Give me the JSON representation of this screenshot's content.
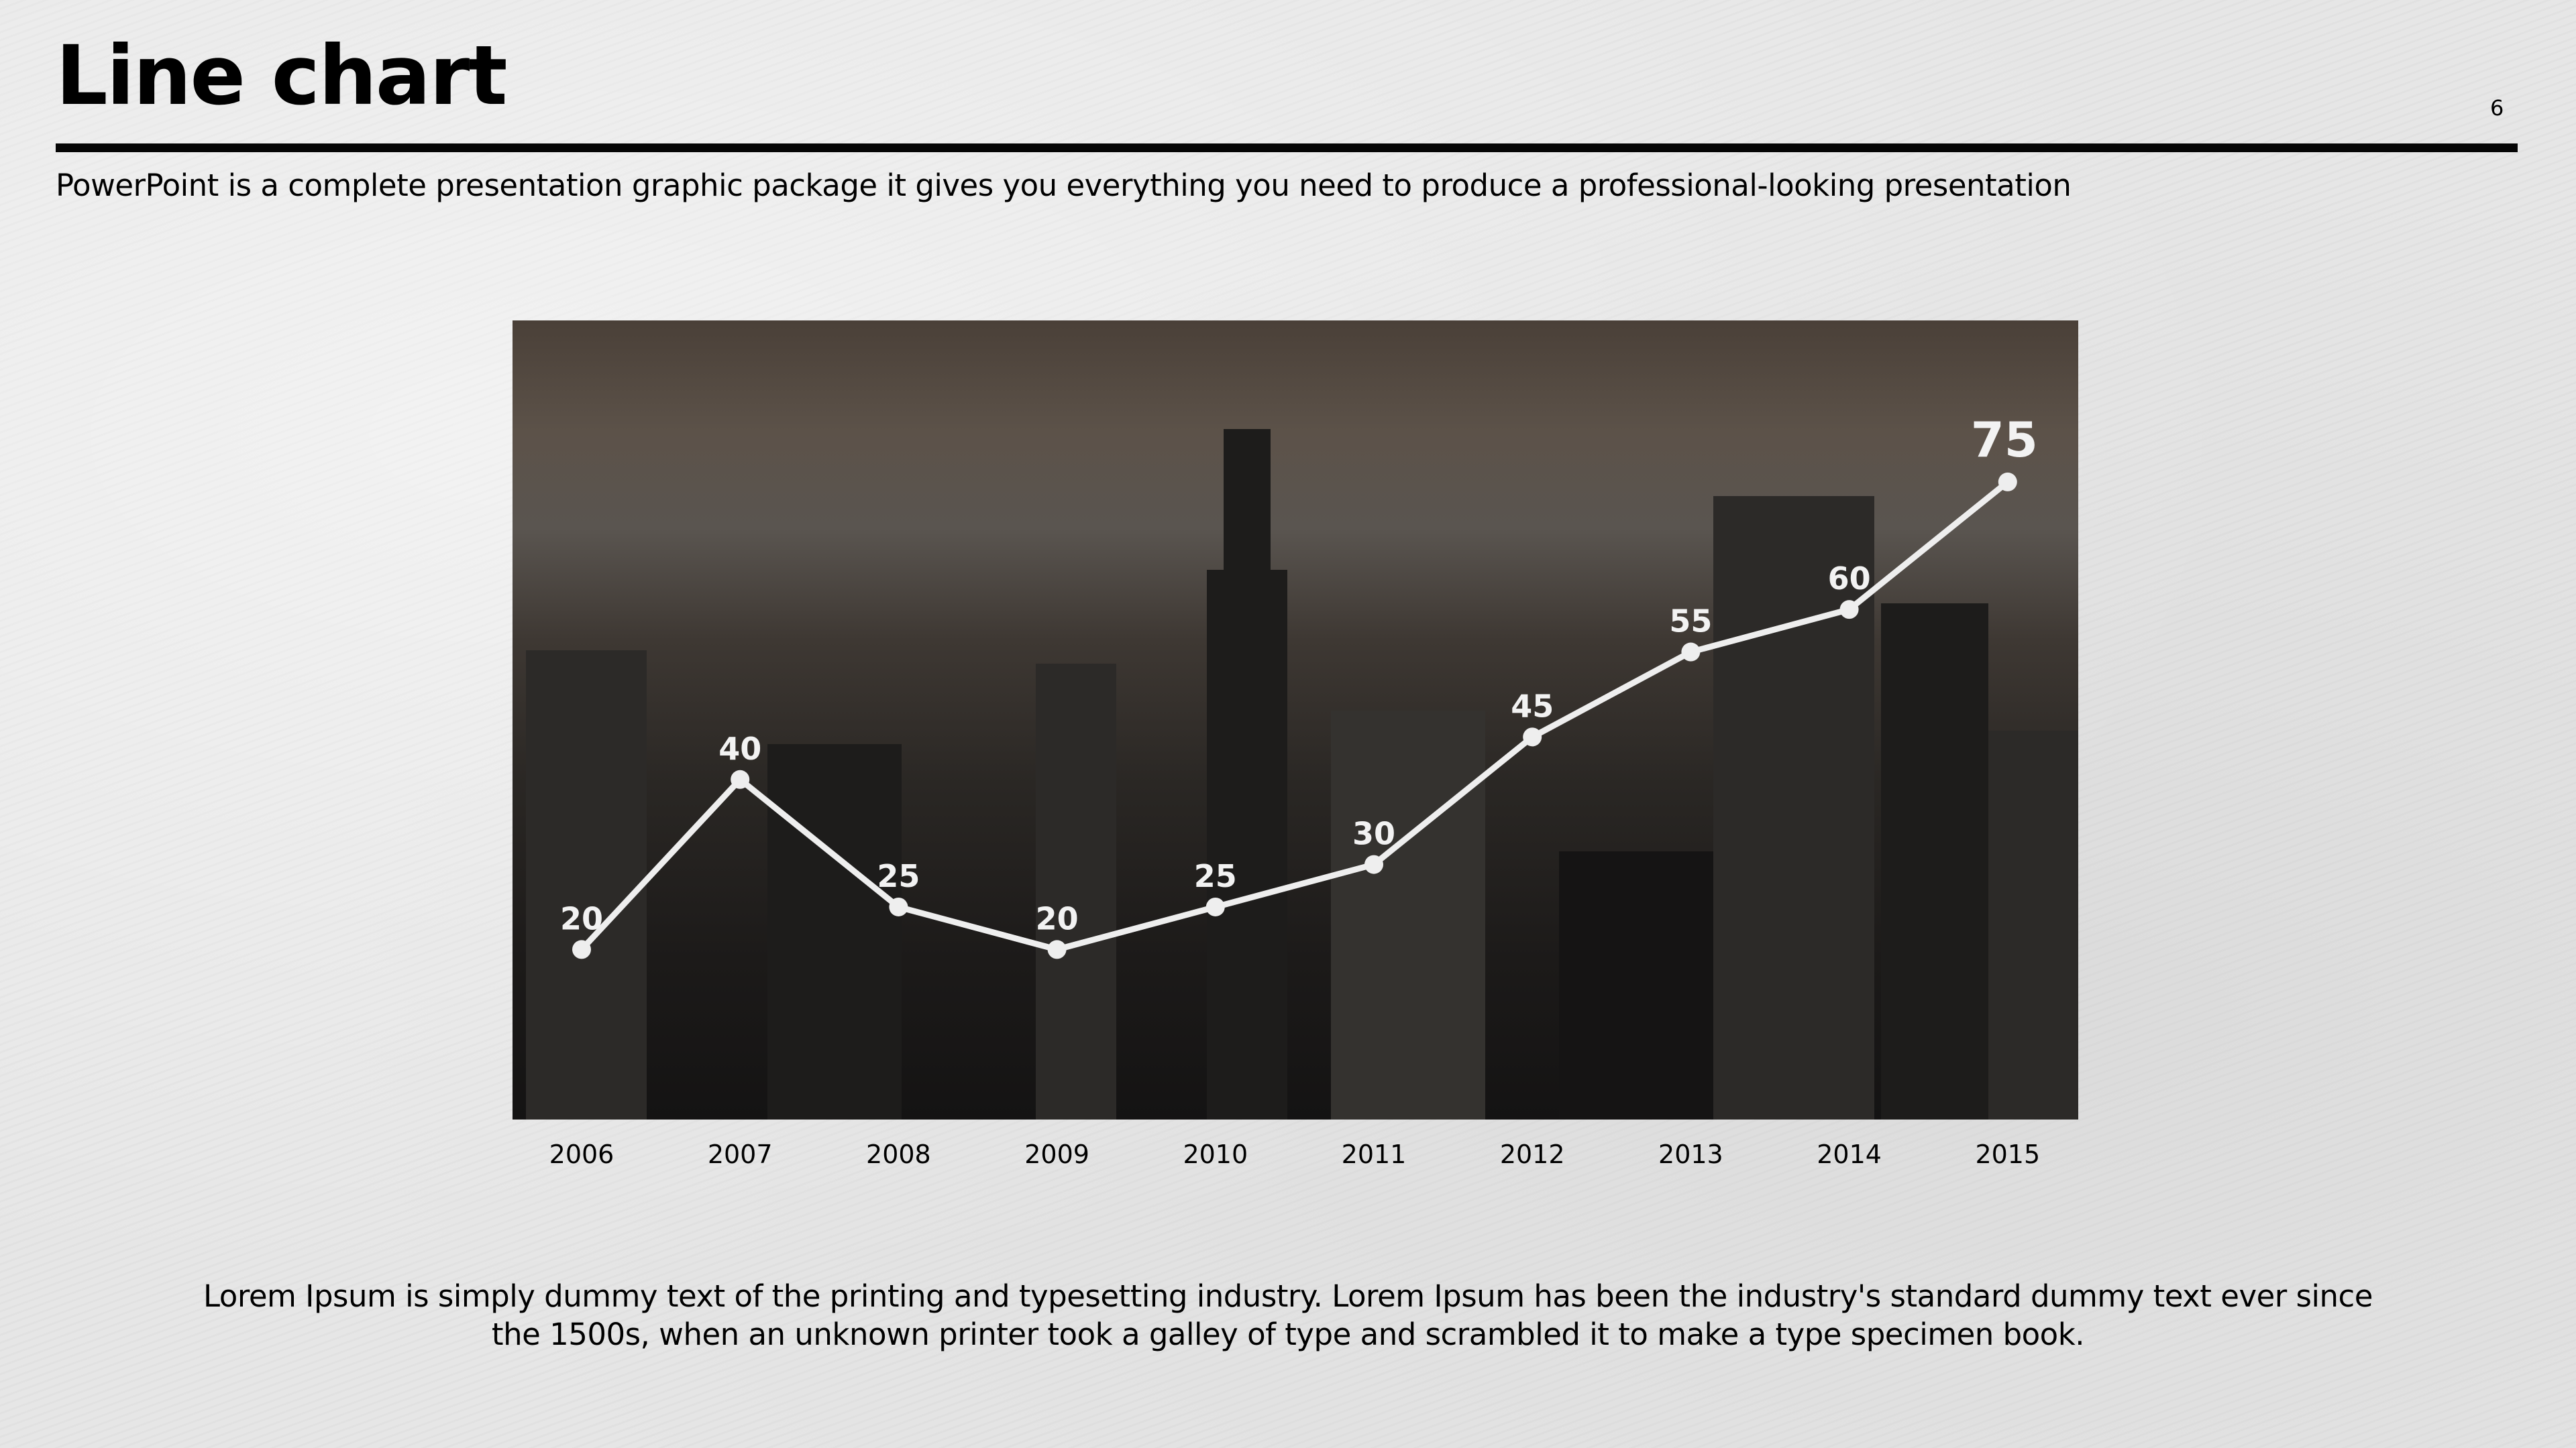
{
  "header": {
    "title": "Line chart",
    "page_number": "6",
    "subtitle": "PowerPoint is a complete presentation graphic package it gives you everything you need to produce a professional-looking presentation"
  },
  "chart_data": {
    "type": "line",
    "categories": [
      "2006",
      "2007",
      "2008",
      "2009",
      "2010",
      "2011",
      "2012",
      "2013",
      "2014",
      "2015"
    ],
    "values": [
      20,
      40,
      25,
      20,
      25,
      30,
      45,
      55,
      60,
      75
    ],
    "data_labels": [
      "20",
      "40",
      "25",
      "20",
      "25",
      "30",
      "45",
      "55",
      "60",
      "75"
    ],
    "title": "",
    "xlabel": "",
    "ylabel": "",
    "ylim": [
      0,
      94
    ],
    "grid": false,
    "line_color": "#eeeeee",
    "background": "city skyline photo"
  },
  "footer": {
    "text": "Lorem Ipsum is simply dummy text of the printing and typesetting industry. Lorem Ipsum has been the industry's standard dummy text ever since the 1500s, when an unknown printer took a galley of type and scrambled it to make a type specimen book."
  }
}
